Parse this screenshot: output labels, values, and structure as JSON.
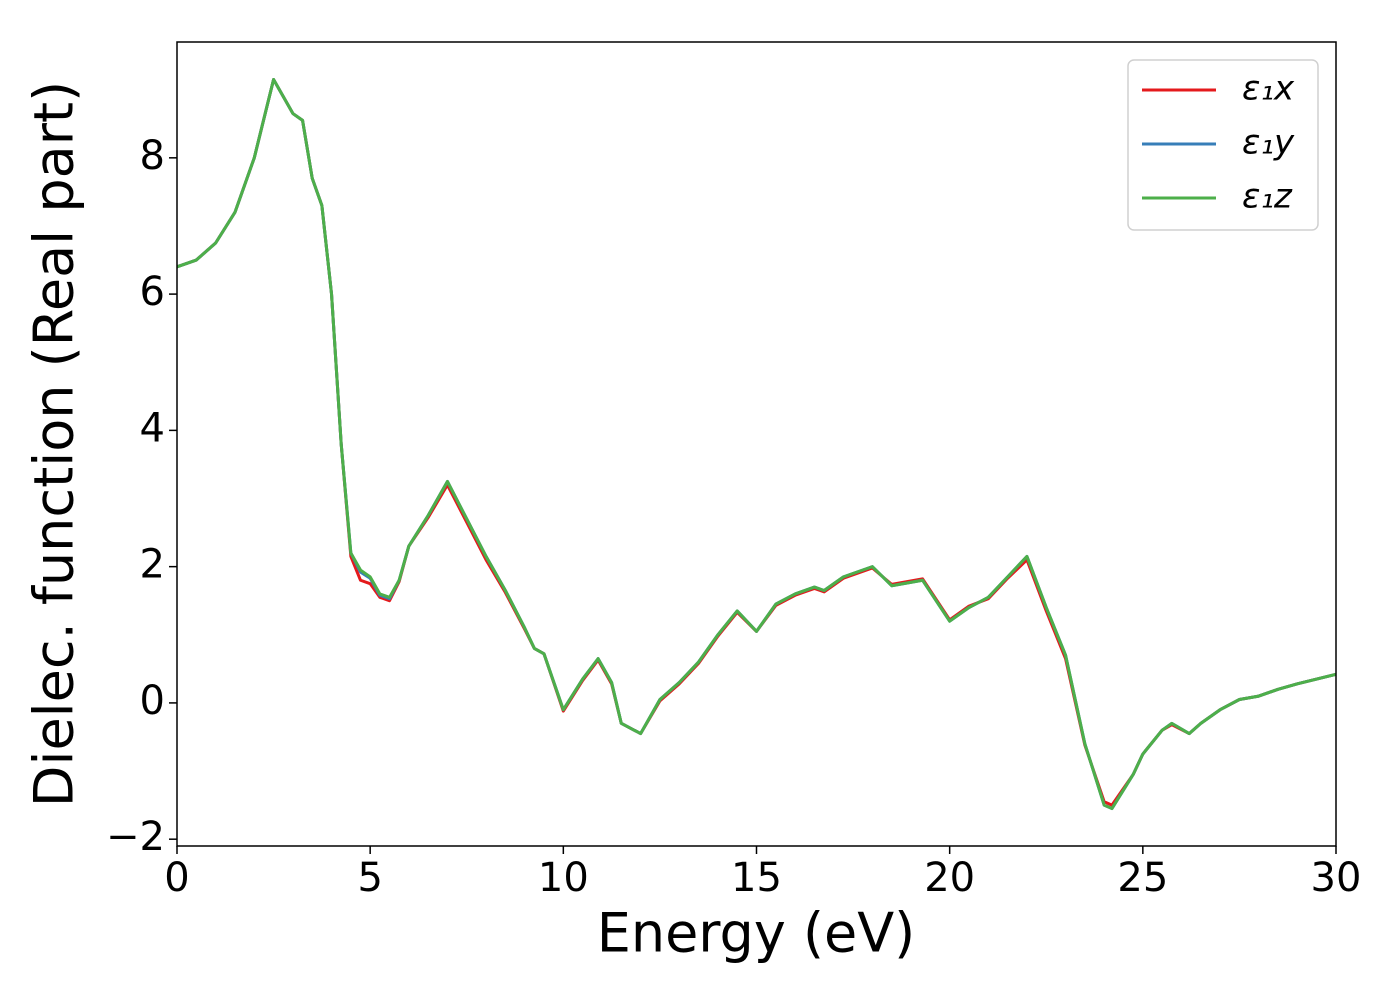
{
  "chart_data": {
    "type": "line",
    "x_label": "Energy (eV)",
    "y_label": "Dielec. function (Real part)",
    "x": [
      0,
      0.5,
      1.0,
      1.5,
      2.0,
      2.5,
      2.75,
      3.0,
      3.25,
      3.5,
      3.75,
      4.0,
      4.25,
      4.5,
      4.75,
      5.0,
      5.25,
      5.5,
      5.75,
      6.0,
      6.5,
      7.0,
      7.5,
      8.0,
      8.5,
      9.0,
      9.25,
      9.5,
      10.0,
      10.5,
      10.9,
      11.25,
      11.5,
      12.0,
      12.5,
      13.0,
      13.5,
      14.0,
      14.5,
      15.0,
      15.5,
      16.0,
      16.5,
      16.75,
      17.25,
      18.0,
      18.5,
      19.3,
      20.0,
      20.5,
      21.0,
      21.5,
      22.0,
      22.5,
      23.0,
      23.5,
      24.0,
      24.2,
      24.75,
      25.0,
      25.5,
      25.75,
      26.2,
      26.5,
      27.0,
      27.5,
      28.0,
      28.5,
      29.0,
      30.0
    ],
    "series": [
      {
        "name": "ε₁x",
        "color": "#e41a1c",
        "values": [
          6.4,
          6.5,
          6.75,
          7.2,
          8.0,
          9.15,
          8.9,
          8.65,
          8.55,
          7.7,
          7.3,
          6.0,
          3.8,
          2.15,
          1.8,
          1.75,
          1.55,
          1.5,
          1.78,
          2.3,
          2.72,
          3.2,
          2.65,
          2.1,
          1.62,
          1.08,
          0.8,
          0.72,
          -0.12,
          0.33,
          0.63,
          0.28,
          -0.3,
          -0.45,
          0.03,
          0.28,
          0.58,
          0.98,
          1.33,
          1.05,
          1.43,
          1.58,
          1.68,
          1.63,
          1.83,
          1.98,
          1.74,
          1.82,
          1.22,
          1.42,
          1.53,
          1.83,
          2.1,
          1.35,
          0.65,
          -0.62,
          -1.45,
          -1.5,
          -1.05,
          -0.75,
          -0.4,
          -0.32,
          -0.45,
          -0.3,
          -0.1,
          0.05,
          0.1,
          0.2,
          0.28,
          0.42
        ]
      },
      {
        "name": "ε₁y",
        "color": "#377eb8",
        "values": [
          6.4,
          6.5,
          6.75,
          7.2,
          8.0,
          9.15,
          8.9,
          8.65,
          8.55,
          7.7,
          7.3,
          6.0,
          3.8,
          2.2,
          1.92,
          1.83,
          1.58,
          1.53,
          1.8,
          2.3,
          2.75,
          3.25,
          2.7,
          2.15,
          1.65,
          1.1,
          0.8,
          0.72,
          -0.1,
          0.35,
          0.65,
          0.3,
          -0.3,
          -0.45,
          0.05,
          0.3,
          0.6,
          1.0,
          1.35,
          1.05,
          1.45,
          1.6,
          1.7,
          1.65,
          1.85,
          2.0,
          1.72,
          1.8,
          1.2,
          1.4,
          1.55,
          1.85,
          2.15,
          1.4,
          0.7,
          -0.6,
          -1.5,
          -1.55,
          -1.05,
          -0.75,
          -0.4,
          -0.3,
          -0.45,
          -0.3,
          -0.1,
          0.05,
          0.1,
          0.2,
          0.28,
          0.42
        ]
      },
      {
        "name": "ε₁z",
        "color": "#4daf4a",
        "values": [
          6.4,
          6.5,
          6.75,
          7.2,
          8.0,
          9.15,
          8.9,
          8.65,
          8.55,
          7.7,
          7.3,
          6.0,
          3.8,
          2.2,
          1.95,
          1.85,
          1.6,
          1.55,
          1.8,
          2.3,
          2.75,
          3.25,
          2.7,
          2.15,
          1.65,
          1.1,
          0.8,
          0.72,
          -0.1,
          0.35,
          0.65,
          0.3,
          -0.3,
          -0.45,
          0.05,
          0.3,
          0.6,
          1.0,
          1.35,
          1.05,
          1.45,
          1.6,
          1.7,
          1.65,
          1.85,
          2.0,
          1.72,
          1.8,
          1.2,
          1.4,
          1.55,
          1.85,
          2.15,
          1.4,
          0.7,
          -0.6,
          -1.5,
          -1.55,
          -1.05,
          -0.75,
          -0.4,
          -0.3,
          -0.45,
          -0.3,
          -0.1,
          0.05,
          0.1,
          0.2,
          0.28,
          0.42
        ]
      }
    ],
    "xlim": [
      0,
      30
    ],
    "xticks": [
      0,
      5,
      10,
      15,
      20,
      25,
      30
    ],
    "ylim": [
      -2.1,
      9.7
    ],
    "yticks": [
      {
        "value": -2,
        "label": "−2"
      },
      0,
      2,
      4,
      6,
      8
    ],
    "grid": false,
    "legend": "upper right"
  }
}
